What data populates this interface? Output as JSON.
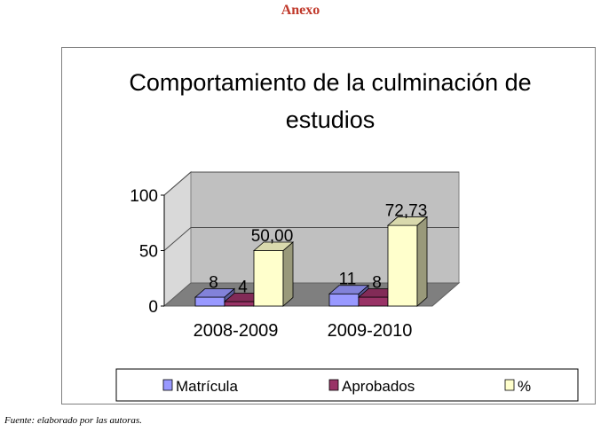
{
  "heading": "Anexo",
  "source_note": "Fuente: elaborado por las autoras.",
  "chart_data": {
    "type": "bar",
    "title": "Comportamiento de la culminación de estudios",
    "title_lines": [
      "Comportamiento de la culminación de",
      "estudios"
    ],
    "categories": [
      "2008-2009",
      "2009-2010"
    ],
    "series": [
      {
        "name": "Matrícula",
        "values": [
          8,
          11
        ],
        "labels": [
          "8",
          "11"
        ],
        "color": "#9999ff"
      },
      {
        "name": "Aprobados",
        "values": [
          4,
          8
        ],
        "labels": [
          "4",
          "8"
        ],
        "color": "#993366"
      },
      {
        "name": "%",
        "values": [
          50.0,
          72.73
        ],
        "labels": [
          "50,00",
          "72,73"
        ],
        "color": "#ffffcc"
      }
    ],
    "y_ticks": [
      "0",
      "50",
      "100"
    ],
    "ylim": [
      0,
      100
    ],
    "grid": true,
    "style": "3d",
    "legend_position": "bottom"
  }
}
